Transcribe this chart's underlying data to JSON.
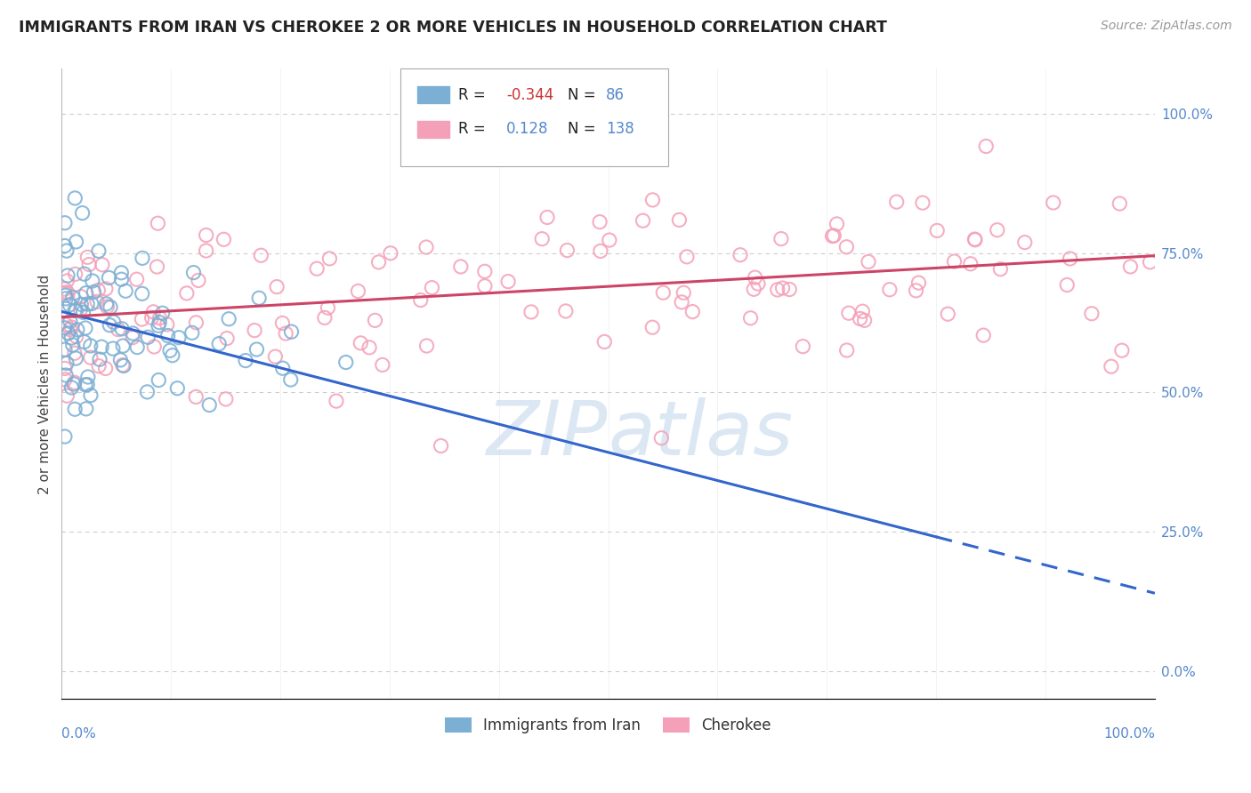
{
  "title": "IMMIGRANTS FROM IRAN VS CHEROKEE 2 OR MORE VEHICLES IN HOUSEHOLD CORRELATION CHART",
  "source": "Source: ZipAtlas.com",
  "ylabel": "2 or more Vehicles in Household",
  "legend_label_blue": "Immigrants from Iran",
  "legend_label_pink": "Cherokee",
  "r_blue": -0.344,
  "n_blue": 86,
  "r_pink": 0.128,
  "n_pink": 138,
  "blue_color": "#7bafd4",
  "pink_color": "#f4a0b8",
  "trend_blue": "#3366cc",
  "trend_pink": "#cc4466",
  "watermark_color": "#b8d0e8",
  "grid_color": "#cccccc",
  "right_tick_color": "#5588cc",
  "title_color": "#222222",
  "source_color": "#999999",
  "ylabel_color": "#444444",
  "legend_text_color_r": "#222222",
  "legend_text_color_n": "#4477cc",
  "legend_text_color_val": "#cc3333",
  "xlim": [
    0.0,
    1.0
  ],
  "ylim": [
    -0.05,
    1.08
  ],
  "trend_blue_y0": 0.645,
  "trend_blue_y1": 0.14,
  "trend_blue_solid_end_x": 0.8,
  "trend_pink_y0": 0.635,
  "trend_pink_y1": 0.745,
  "right_ytick_vals": [
    0.0,
    0.25,
    0.5,
    0.75,
    1.0
  ],
  "right_yticklabels": [
    "0.0%",
    "25.0%",
    "50.0%",
    "75.0%",
    "100.0%"
  ],
  "blue_seed": 42,
  "pink_seed": 99
}
